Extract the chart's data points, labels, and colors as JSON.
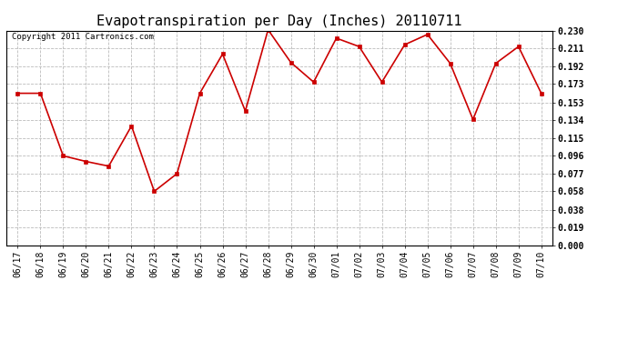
{
  "title": "Evapotranspiration per Day (Inches) 20110711",
  "copyright_text": "Copyright 2011 Cartronics.com",
  "x_labels": [
    "06/17",
    "06/18",
    "06/19",
    "06/20",
    "06/21",
    "06/22",
    "06/23",
    "06/24",
    "06/25",
    "06/26",
    "06/27",
    "06/28",
    "06/29",
    "06/30",
    "07/01",
    "07/02",
    "07/03",
    "07/04",
    "07/05",
    "07/06",
    "07/07",
    "07/08",
    "07/09",
    "07/10"
  ],
  "y_values": [
    0.163,
    0.163,
    0.096,
    0.09,
    0.085,
    0.128,
    0.058,
    0.077,
    0.163,
    0.205,
    0.144,
    0.231,
    0.196,
    0.175,
    0.222,
    0.213,
    0.175,
    0.215,
    0.226,
    0.195,
    0.135,
    0.195,
    0.213,
    0.163
  ],
  "line_color": "#cc0000",
  "marker": "s",
  "marker_size": 3,
  "ylim": [
    0.0,
    0.23
  ],
  "yticks": [
    0.0,
    0.019,
    0.038,
    0.058,
    0.077,
    0.096,
    0.115,
    0.134,
    0.153,
    0.173,
    0.192,
    0.211,
    0.23
  ],
  "background_color": "#ffffff",
  "grid_color": "#bbbbbb",
  "title_fontsize": 11,
  "tick_fontsize": 7,
  "copyright_fontsize": 6.5
}
